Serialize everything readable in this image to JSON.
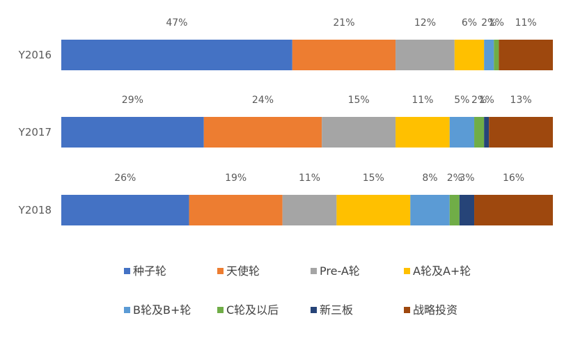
{
  "chart_data": {
    "type": "bar",
    "orientation": "horizontal",
    "stacked": "100%",
    "categories": [
      "Y2016",
      "Y2017",
      "Y2018"
    ],
    "series": [
      {
        "name": "种子轮",
        "color": "#4472C4",
        "values": [
          47,
          29,
          26
        ],
        "labels": [
          "47%",
          "29%",
          "26%"
        ]
      },
      {
        "name": "天使轮",
        "color": "#ED7D31",
        "values": [
          21,
          24,
          19
        ],
        "labels": [
          "21%",
          "24%",
          "19%"
        ]
      },
      {
        "name": "Pre-A轮",
        "color": "#A5A5A5",
        "values": [
          12,
          15,
          11
        ],
        "labels": [
          "12%",
          "15%",
          "11%"
        ]
      },
      {
        "name": "A轮及A+轮",
        "color": "#FFC000",
        "values": [
          6,
          11,
          15
        ],
        "labels": [
          "6%",
          "11%",
          "15%"
        ]
      },
      {
        "name": "B轮及B+轮",
        "color": "#5B9BD5",
        "values": [
          2,
          5,
          8
        ],
        "labels": [
          "2%",
          "5%",
          "8%"
        ]
      },
      {
        "name": "C轮及以后",
        "color": "#70AD47",
        "values": [
          1,
          2,
          2
        ],
        "labels": [
          "1%",
          "2%",
          "2%"
        ]
      },
      {
        "name": "新三板",
        "color": "#264478",
        "values": [
          0,
          1,
          3
        ],
        "labels": [
          "",
          "1%",
          "3%"
        ]
      },
      {
        "name": "战略投资",
        "color": "#9E480E",
        "values": [
          11,
          13,
          16
        ],
        "labels": [
          "11%",
          "13%",
          "16%"
        ]
      }
    ],
    "legend": "bottom",
    "grid": false
  }
}
